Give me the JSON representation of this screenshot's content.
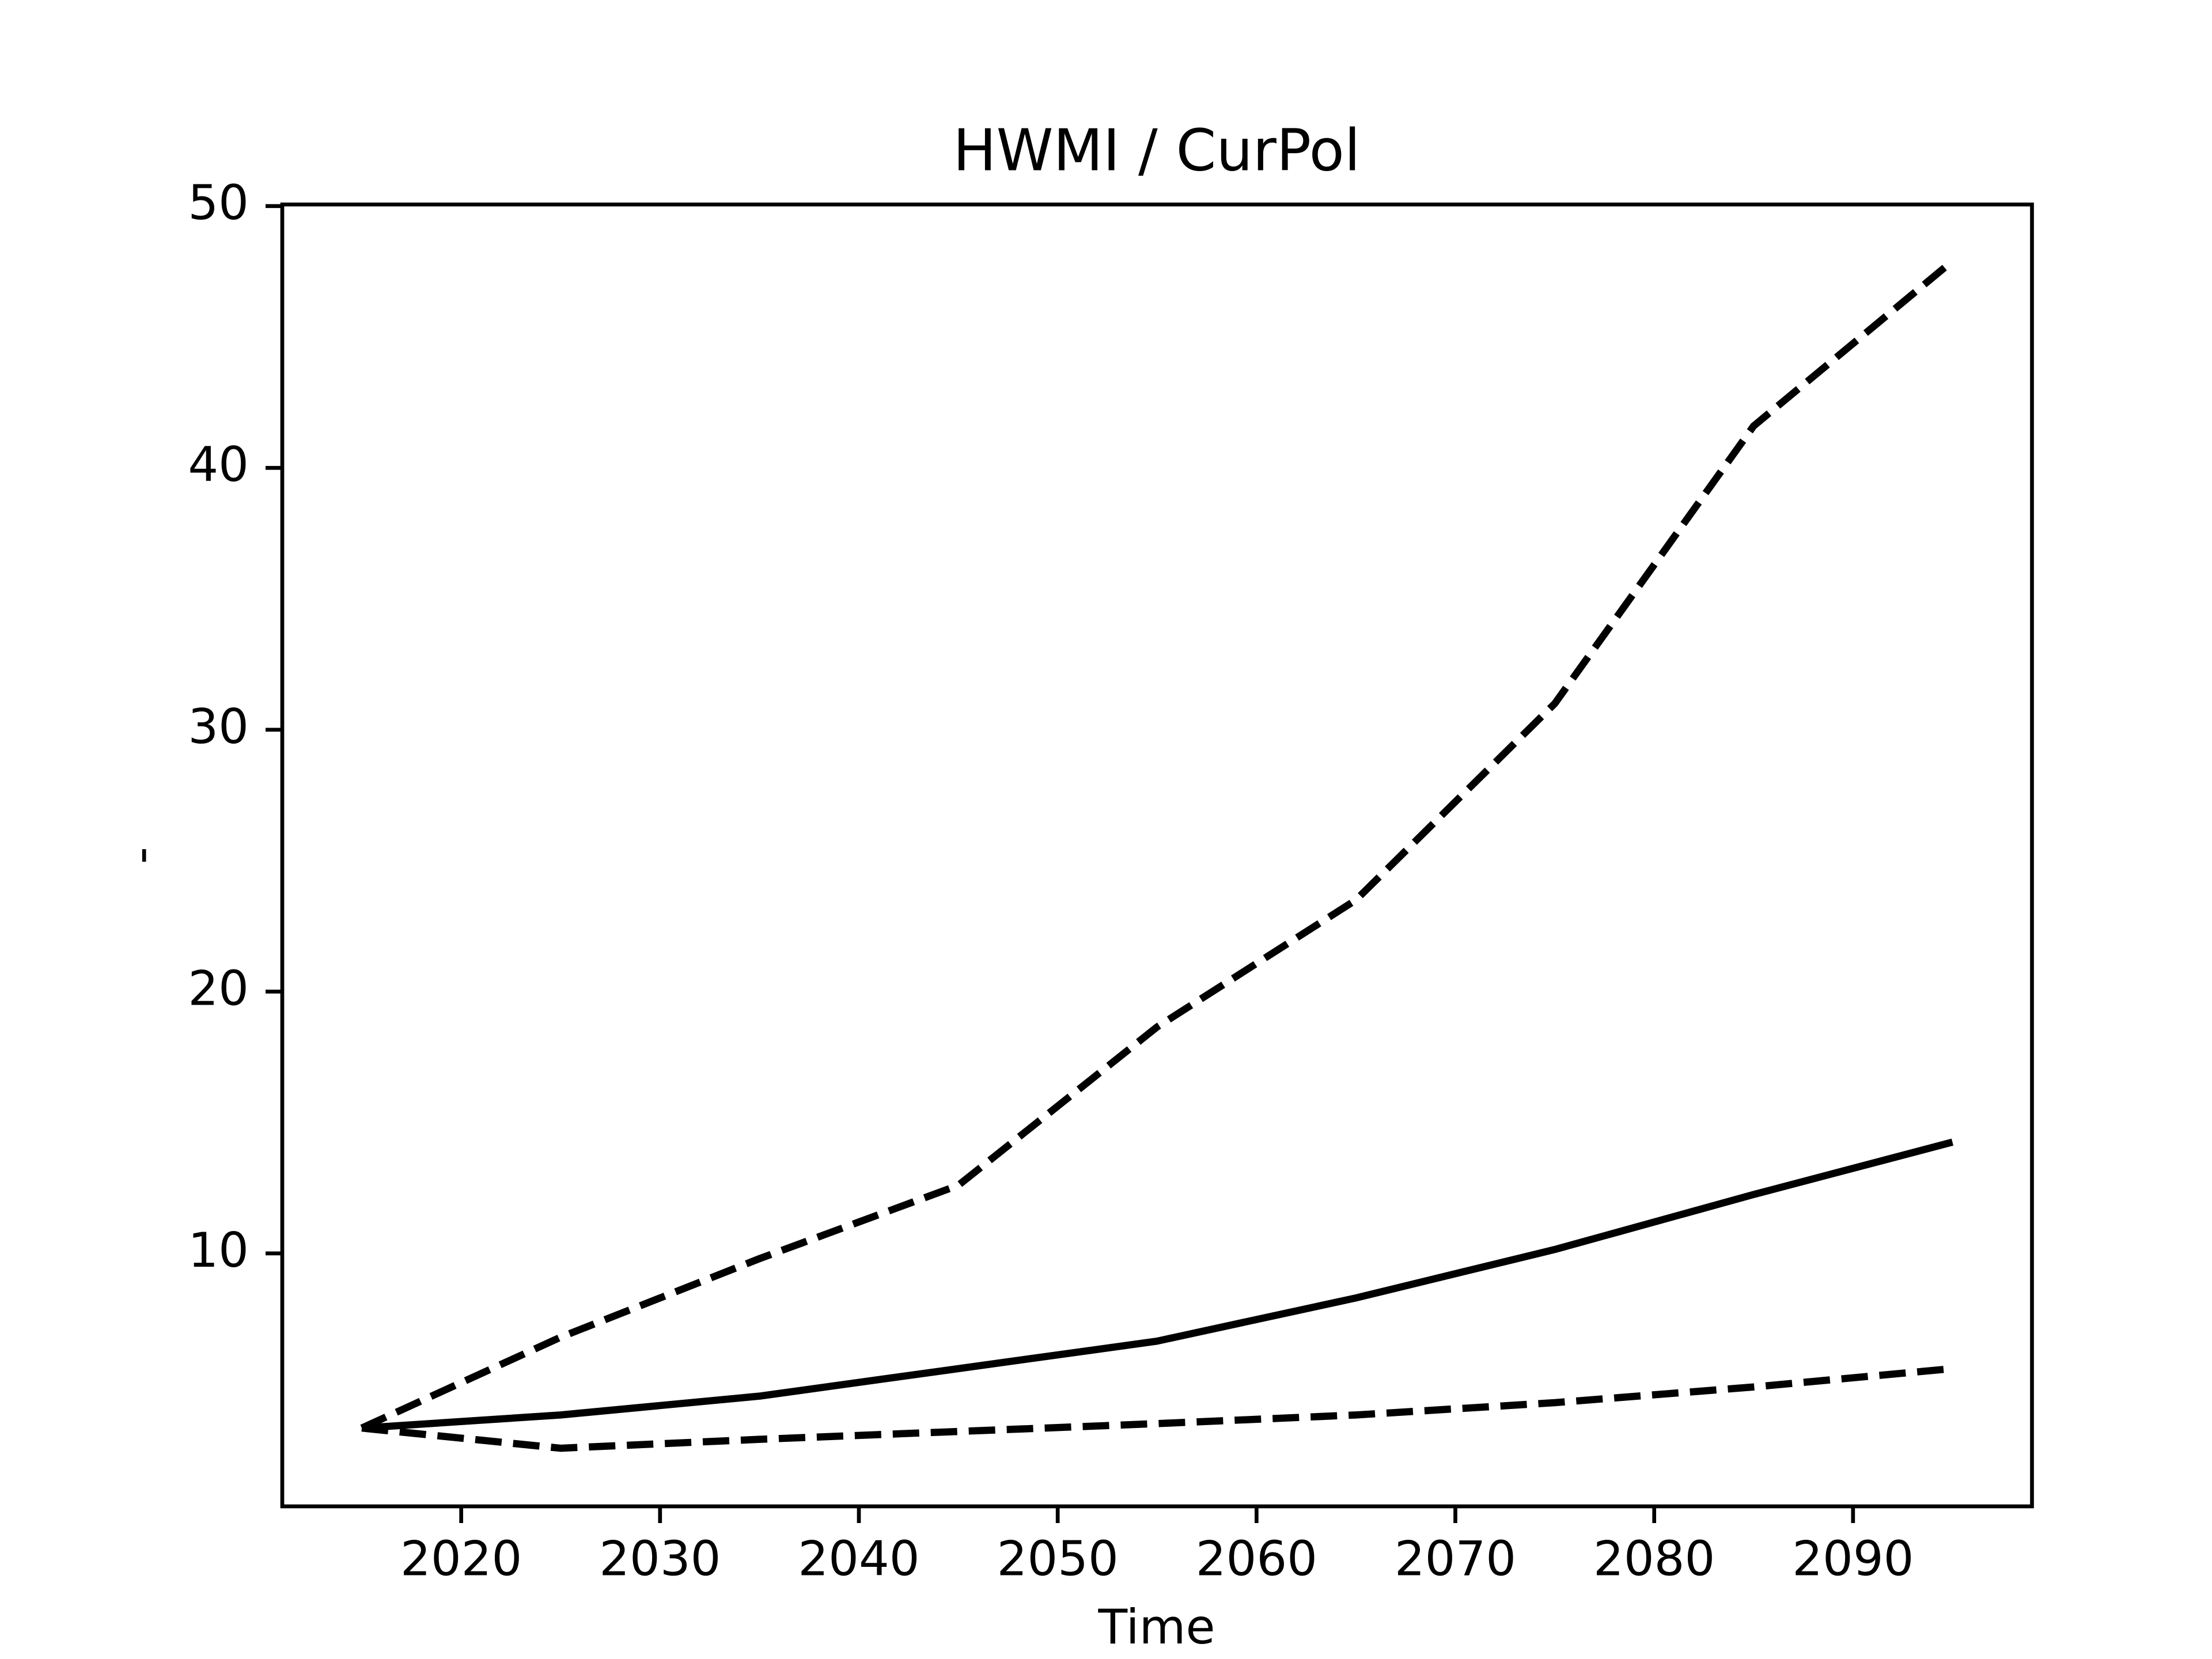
{
  "chart_data": {
    "type": "line",
    "title": "HWMI / CurPol",
    "x_label": "Time",
    "y_label": "-",
    "x": [
      2015,
      2025,
      2035,
      2045,
      2055,
      2065,
      2075,
      2085,
      2095
    ],
    "series": [
      {
        "color": "#000000",
        "linestyle": "dashed",
        "values": [
          3.33,
          6.8,
          9.8,
          12.6,
          18.65,
          23.5,
          31.0,
          41.6,
          47.9
        ]
      },
      {
        "color": "#000000",
        "linestyle": "solid",
        "values": [
          3.33,
          3.83,
          4.55,
          5.6,
          6.65,
          8.3,
          10.15,
          12.25,
          14.25
        ]
      },
      {
        "color": "#000000",
        "linestyle": "dashed",
        "values": [
          3.33,
          2.56,
          2.9,
          3.2,
          3.5,
          3.83,
          4.3,
          4.9,
          5.6
        ]
      }
    ],
    "xlim": [
      2011,
      2099
    ],
    "xticks": [
      2020,
      2030,
      2040,
      2050,
      2060,
      2070,
      2080,
      2090
    ],
    "ylim": [
      0.34,
      50.06
    ],
    "yticks": [
      10,
      20,
      30,
      40,
      50
    ],
    "grid": false
  }
}
